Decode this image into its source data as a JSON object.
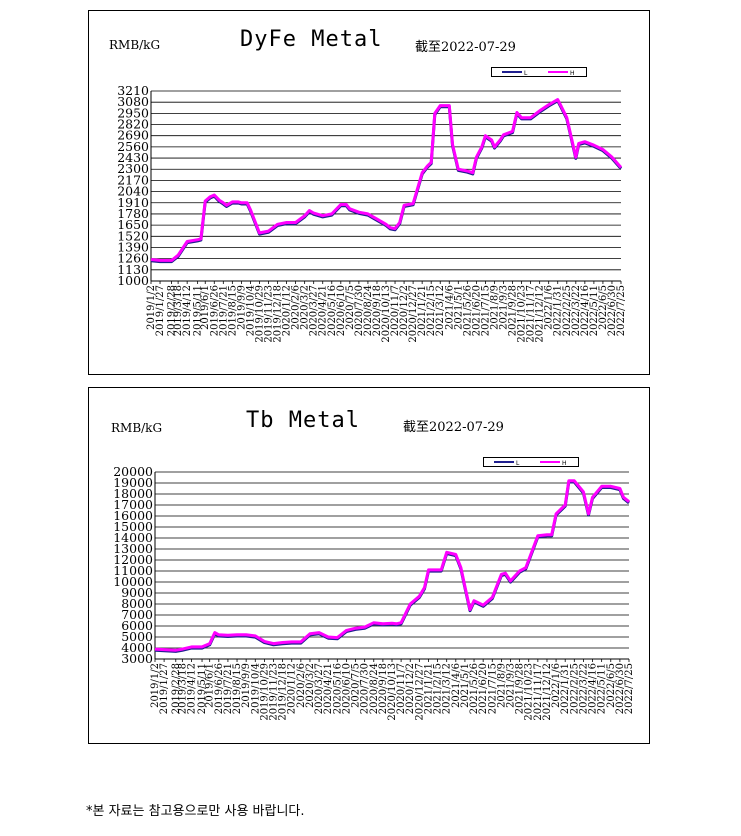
{
  "footer_note": "*본 자료는 참고용으로만 사용 바랍니다.",
  "chart_data": [
    {
      "type": "line",
      "title": "DyFe Metal",
      "unit_label": "RMB/kG",
      "as_of": "截至2022-07-29",
      "ylim": [
        1000,
        3210
      ],
      "yticks": [
        1000,
        1130,
        1260,
        1390,
        1520,
        1650,
        1780,
        1910,
        2040,
        2170,
        2300,
        2430,
        2560,
        2690,
        2820,
        2950,
        3080,
        3210
      ],
      "xticks": [
        "2019/1/2",
        "2019/1/27",
        "2019/2/28",
        "2019/3/18",
        "2019/4/12",
        "2019/5/11",
        "2019/6/1",
        "2019/6/26",
        "2019/7/21",
        "2019/8/15",
        "2019/9/9",
        "2019/10/4",
        "2019/10/29",
        "2019/11/23",
        "2019/12/18",
        "2020/1/12",
        "2020/2/6",
        "2020/3/2",
        "2020/3/27",
        "2020/4/21",
        "2020/5/16",
        "2020/6/10",
        "2020/7/5",
        "2020/7/30",
        "2020/8/24",
        "2020/9/18",
        "2020/10/13",
        "2020/11/7",
        "2020/12/2",
        "2020/12/27",
        "2021/1/21",
        "2021/2/15",
        "2021/3/12",
        "2021/4/6",
        "2021/5/1",
        "2021/5/26",
        "2021/6/20",
        "2021/7/15",
        "2021/8/9",
        "2021/9/3",
        "2021/9/28",
        "2021/10/23",
        "2021/11/17",
        "2021/12/12",
        "2022/1/6",
        "2022/1/31",
        "2022/2/25",
        "2022/3/22",
        "2022/4/16",
        "2022/5/11",
        "2022/6/5",
        "2022/6/30",
        "2022/7/25"
      ],
      "grid": true,
      "legend": "top-right",
      "series": [
        {
          "name": "L",
          "color": "#1f1f8f"
        },
        {
          "name": "H",
          "color": "#ff00ff"
        }
      ],
      "x": [
        "2019/1/2",
        "2019/1/27",
        "2019/2/28",
        "2019/3/18",
        "2019/4/12",
        "2019/5/11",
        "2019/5/20",
        "2019/6/1",
        "2019/6/15",
        "2019/6/26",
        "2019/7/10",
        "2019/7/21",
        "2019/7/30",
        "2019/8/15",
        "2019/9/1",
        "2019/9/9",
        "2019/9/25",
        "2019/10/4",
        "2019/10/29",
        "2019/11/23",
        "2019/12/18",
        "2020/1/12",
        "2020/2/6",
        "2020/3/2",
        "2020/3/15",
        "2020/3/27",
        "2020/4/21",
        "2020/5/16",
        "2020/6/10",
        "2020/6/25",
        "2020/7/5",
        "2020/7/30",
        "2020/8/24",
        "2020/9/18",
        "2020/10/13",
        "2020/10/25",
        "2020/11/7",
        "2020/11/20",
        "2020/12/2",
        "2020/12/27",
        "2021/1/21",
        "2021/2/5",
        "2021/2/15",
        "2021/2/25",
        "2021/3/12",
        "2021/4/6",
        "2021/4/15",
        "2021/5/1",
        "2021/5/26",
        "2021/6/10",
        "2021/6/20",
        "2021/7/5",
        "2021/7/15",
        "2021/8/1",
        "2021/8/9",
        "2021/8/25",
        "2021/9/3",
        "2021/9/28",
        "2021/10/10",
        "2021/10/23",
        "2021/11/17",
        "2021/12/12",
        "2022/1/6",
        "2022/1/31",
        "2022/2/10",
        "2022/2/25",
        "2022/3/22",
        "2022/3/30",
        "2022/4/16",
        "2022/5/11",
        "2022/6/5",
        "2022/6/30",
        "2022/7/25"
      ],
      "values": [
        1250,
        1240,
        1240,
        1300,
        1460,
        1480,
        1490,
        1930,
        1980,
        2000,
        1940,
        1910,
        1880,
        1920,
        1920,
        1910,
        1910,
        1830,
        1560,
        1580,
        1660,
        1680,
        1680,
        1760,
        1820,
        1790,
        1760,
        1780,
        1890,
        1890,
        1840,
        1800,
        1780,
        1720,
        1660,
        1620,
        1610,
        1680,
        1880,
        1900,
        2260,
        2340,
        2380,
        2950,
        3040,
        3040,
        2590,
        2300,
        2280,
        2260,
        2440,
        2560,
        2690,
        2640,
        2560,
        2640,
        2700,
        2740,
        2960,
        2900,
        2900,
        2980,
        3050,
        3110,
        3030,
        2900,
        2440,
        2600,
        2620,
        2580,
        2530,
        2440,
        2320
      ]
    },
    {
      "type": "line",
      "title": "Tb Metal",
      "unit_label": "RMB/kG",
      "as_of": "截至2022-07-29",
      "ylim": [
        3000,
        20000
      ],
      "yticks": [
        3000,
        4000,
        5000,
        6000,
        7000,
        8000,
        9000,
        10000,
        11000,
        12000,
        13000,
        14000,
        15000,
        16000,
        17000,
        18000,
        19000,
        20000
      ],
      "xticks": [
        "2019/1/2",
        "2019/1/27",
        "2019/2/28",
        "2019/3/18",
        "2019/4/12",
        "2019/5/11",
        "2019/6/1",
        "2019/6/26",
        "2019/7/21",
        "2019/8/15",
        "2019/9/9",
        "2019/10/4",
        "2019/10/29",
        "2019/11/23",
        "2019/12/18",
        "2020/1/12",
        "2020/2/6",
        "2020/3/2",
        "2020/3/27",
        "2020/4/21",
        "2020/5/16",
        "2020/6/10",
        "2020/7/5",
        "2020/7/30",
        "2020/8/24",
        "2020/9/18",
        "2020/10/13",
        "2020/11/7",
        "2020/12/2",
        "2020/12/27",
        "2021/1/21",
        "2021/2/15",
        "2021/3/12",
        "2021/4/6",
        "2021/5/1",
        "2021/5/26",
        "2021/6/20",
        "2021/7/15",
        "2021/8/9",
        "2021/9/3",
        "2021/9/28",
        "2021/10/23",
        "2021/11/17",
        "2021/12/12",
        "2022/1/6",
        "2022/1/31",
        "2022/2/25",
        "2022/3/22",
        "2022/4/16",
        "2022/5/11",
        "2022/6/5",
        "2022/6/30",
        "2022/7/25"
      ],
      "grid": true,
      "legend": "top-right",
      "series": [
        {
          "name": "L",
          "color": "#1f1f8f"
        },
        {
          "name": "H",
          "color": "#ff00ff"
        }
      ],
      "x": [
        "2019/1/2",
        "2019/1/27",
        "2019/2/28",
        "2019/3/18",
        "2019/4/12",
        "2019/5/11",
        "2019/6/1",
        "2019/6/15",
        "2019/6/26",
        "2019/7/21",
        "2019/8/15",
        "2019/9/9",
        "2019/10/4",
        "2019/10/29",
        "2019/11/23",
        "2019/12/18",
        "2020/1/12",
        "2020/2/6",
        "2020/3/2",
        "2020/3/27",
        "2020/4/21",
        "2020/5/16",
        "2020/6/10",
        "2020/7/5",
        "2020/7/30",
        "2020/8/24",
        "2020/9/18",
        "2020/10/13",
        "2020/10/25",
        "2020/11/7",
        "2020/12/2",
        "2020/12/27",
        "2021/1/10",
        "2021/1/21",
        "2021/2/15",
        "2021/2/25",
        "2021/3/12",
        "2021/4/6",
        "2021/4/20",
        "2021/5/1",
        "2021/5/15",
        "2021/5/26",
        "2021/6/20",
        "2021/7/15",
        "2021/8/9",
        "2021/8/20",
        "2021/9/3",
        "2021/9/28",
        "2021/10/15",
        "2021/10/23",
        "2021/11/17",
        "2021/12/12",
        "2021/12/25",
        "2022/1/6",
        "2022/1/31",
        "2022/2/10",
        "2022/2/25",
        "2022/3/22",
        "2022/4/5",
        "2022/4/16",
        "2022/5/11",
        "2022/6/5",
        "2022/6/30",
        "2022/7/10",
        "2022/7/25"
      ],
      "values": [
        3900,
        3850,
        3800,
        3900,
        4100,
        4100,
        4400,
        5400,
        5200,
        5150,
        5200,
        5200,
        5100,
        4600,
        4400,
        4500,
        4550,
        4550,
        5300,
        5400,
        5000,
        4950,
        5600,
        5800,
        5900,
        6300,
        6200,
        6250,
        6200,
        6300,
        8000,
        8700,
        9500,
        11100,
        11100,
        11100,
        12700,
        12500,
        11300,
        9600,
        7500,
        8300,
        7900,
        8600,
        10700,
        10800,
        10100,
        11000,
        11300,
        12000,
        14200,
        14300,
        14300,
        16200,
        17000,
        19200,
        19200,
        18200,
        16200,
        17700,
        18700,
        18700,
        18500,
        17700,
        17300
      ]
    }
  ]
}
